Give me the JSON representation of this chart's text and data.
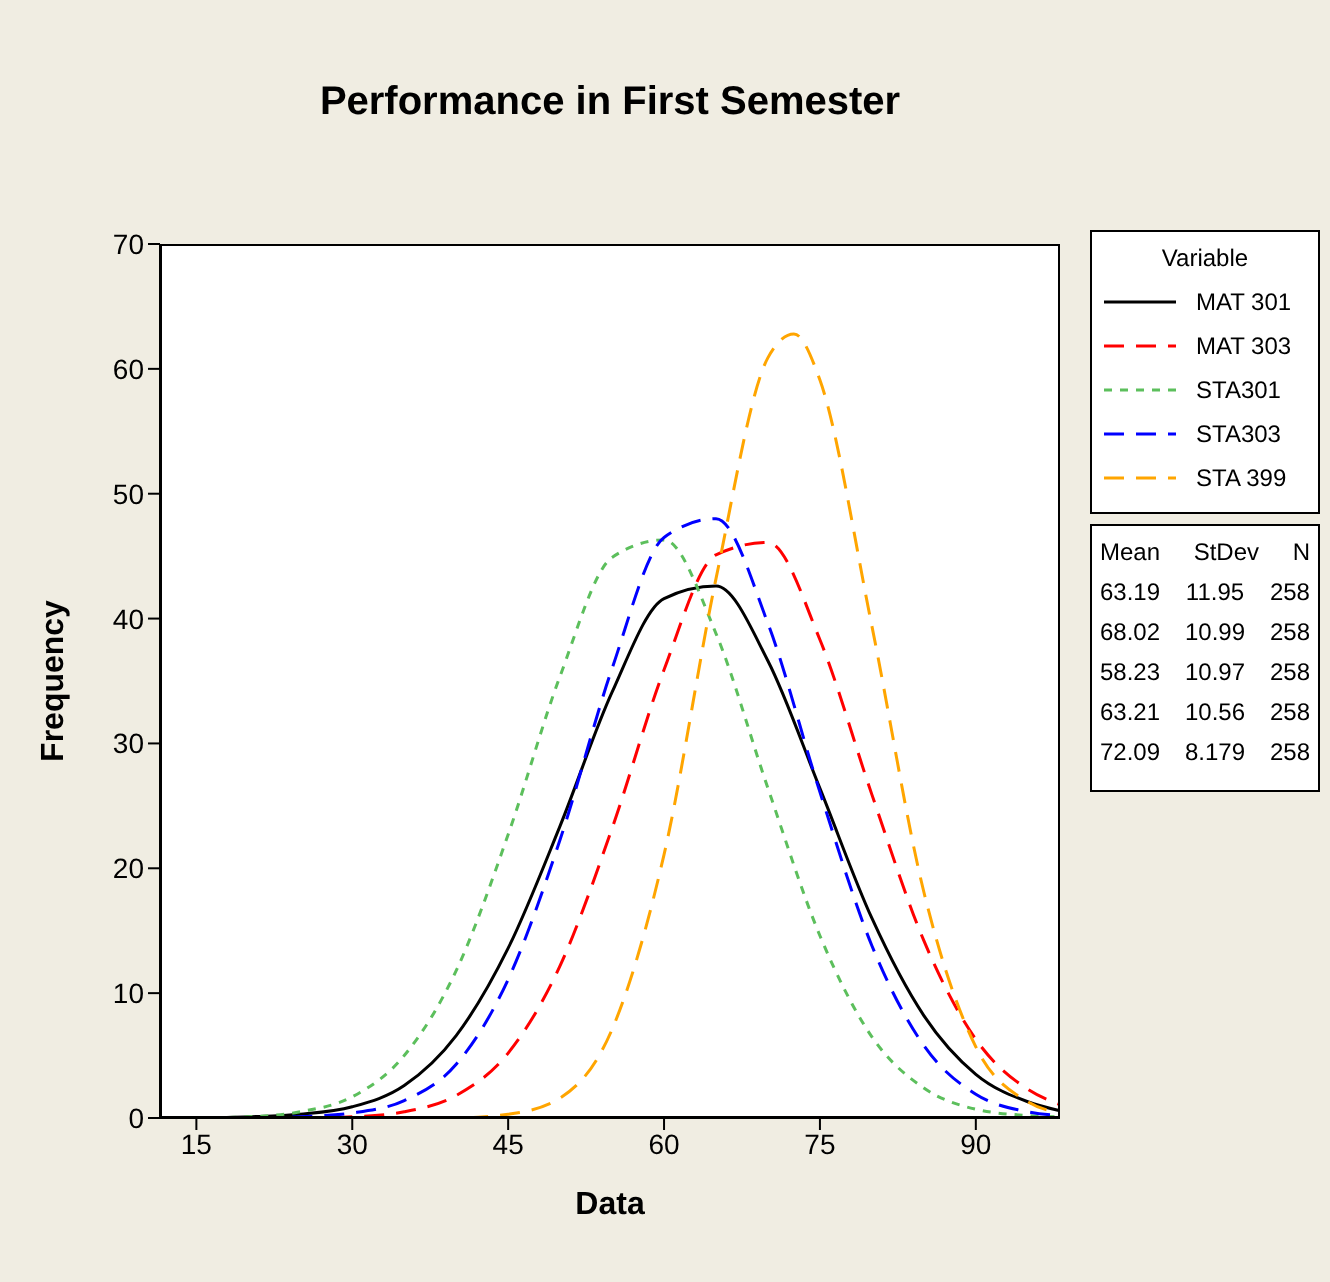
{
  "chart_data": {
    "type": "line",
    "title": "Performance in First Semester",
    "xlabel": "Data",
    "ylabel": "Frequency",
    "legend_title": "Variable",
    "legend": "right",
    "grid": false,
    "marker": "none",
    "x": [
      15,
      20,
      25,
      30,
      35,
      40,
      45,
      50,
      55,
      60,
      65,
      70,
      75,
      80,
      85,
      90,
      95,
      98
    ],
    "series": [
      {
        "name": "MAT 301",
        "color": "#000000",
        "line_style": "solid",
        "values": [
          0.0,
          0.1,
          0.3,
          0.9,
          2.6,
          6.6,
          13.6,
          23.4,
          34.1,
          41.6,
          42.6,
          36.6,
          26.4,
          16.0,
          8.2,
          3.5,
          1.3,
          0.6
        ]
      },
      {
        "name": "MAT 303",
        "color": "#ff0000",
        "line_style": "dashed",
        "values": [
          null,
          null,
          0.0,
          0.1,
          0.5,
          1.8,
          5.2,
          12.2,
          23.2,
          35.9,
          45.1,
          46.1,
          38.3,
          25.9,
          14.2,
          6.3,
          2.3,
          1.1
        ]
      },
      {
        "name": "STA301",
        "color": "#5cbf5c",
        "line_style": "dotted",
        "values": [
          0.0,
          0.1,
          0.5,
          1.7,
          5.0,
          11.8,
          22.7,
          35.4,
          44.9,
          46.3,
          38.8,
          26.4,
          14.6,
          6.5,
          2.4,
          0.7,
          0.2,
          0.1
        ]
      },
      {
        "name": "STA303",
        "color": "#0000ff",
        "line_style": "dashed",
        "values": [
          0.0,
          0.0,
          0.1,
          0.4,
          1.4,
          4.3,
          11.1,
          22.3,
          36.0,
          46.5,
          48.0,
          39.6,
          26.1,
          13.8,
          5.8,
          1.9,
          0.5,
          0.2
        ]
      },
      {
        "name": "STA 399",
        "color": "#ffa500",
        "line_style": "dashed",
        "x": [
          35,
          40,
          45,
          50,
          55,
          60,
          65,
          70,
          72.5,
          75,
          80,
          85,
          90,
          95,
          98
        ],
        "values": [
          0.0,
          0.0,
          0.3,
          1.6,
          7.1,
          21.1,
          43.2,
          60.9,
          62.8,
          59.1,
          39.4,
          18.1,
          5.7,
          1.3,
          0.4
        ]
      }
    ],
    "xlim": [
      11.5,
      98.1
    ],
    "xticks": [
      15,
      30,
      45,
      60,
      75,
      90
    ],
    "ylim": [
      0,
      70
    ],
    "yticks": [
      0,
      10,
      20,
      30,
      40,
      50,
      60,
      70
    ],
    "annotations": [
      "Mean StDev N",
      "63.19 11.95 258",
      "68.02 10.99 258",
      "58.23 10.97 258",
      "63.21 10.56 258",
      "72.09 8.179 258"
    ]
  }
}
